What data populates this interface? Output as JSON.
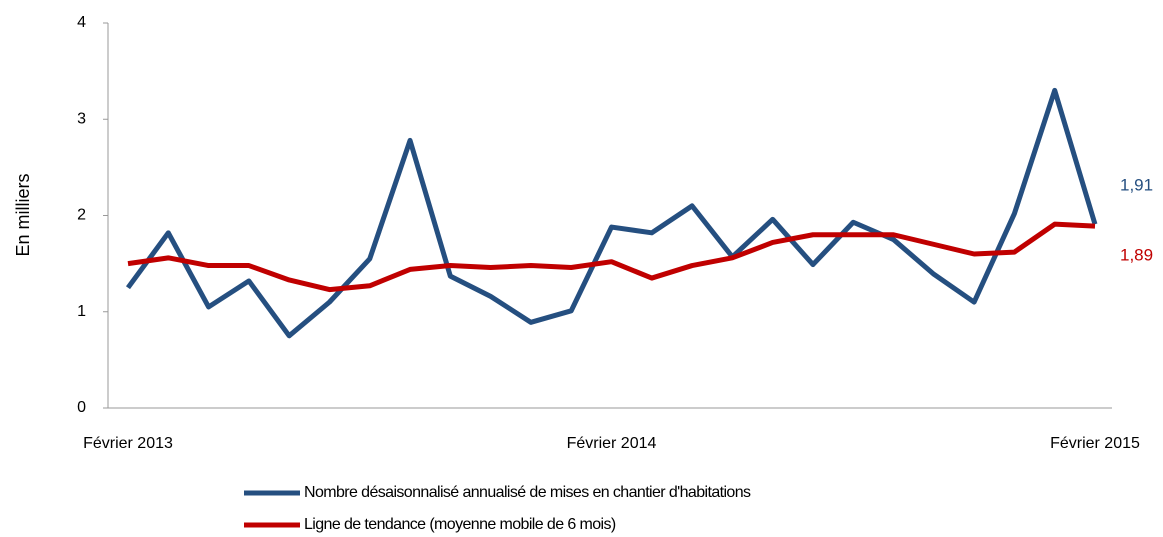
{
  "chart_data": {
    "type": "line",
    "y_label": "En milliers",
    "categories": [
      "Février 2013",
      null,
      null,
      null,
      null,
      null,
      null,
      null,
      null,
      null,
      null,
      null,
      "Février 2014",
      null,
      null,
      null,
      null,
      null,
      null,
      null,
      null,
      null,
      null,
      null,
      "Février 2015"
    ],
    "series": [
      {
        "name": "Nombre désaisonnalisé annualisé de mises en chantier d'habitations",
        "color": "#254f80",
        "values": [
          1.25,
          1.82,
          1.05,
          1.32,
          0.75,
          1.1,
          1.55,
          2.78,
          1.37,
          1.16,
          0.89,
          1.01,
          1.88,
          1.82,
          2.1,
          1.57,
          1.96,
          1.49,
          1.93,
          1.75,
          1.39,
          1.1,
          2.02,
          3.3,
          1.91
        ],
        "value_labels": [
          null,
          null,
          null,
          null,
          null,
          null,
          null,
          null,
          null,
          null,
          null,
          null,
          null,
          null,
          null,
          null,
          null,
          null,
          null,
          null,
          null,
          null,
          null,
          null,
          "1,91"
        ]
      },
      {
        "name": "Ligne de tendance (moyenne mobile de 6 mois)",
        "color": "#c00000",
        "values": [
          1.5,
          1.56,
          1.48,
          1.48,
          1.33,
          1.23,
          1.27,
          1.44,
          1.48,
          1.46,
          1.48,
          1.46,
          1.52,
          1.35,
          1.48,
          1.56,
          1.72,
          1.8,
          1.8,
          1.8,
          1.7,
          1.6,
          1.62,
          1.91,
          1.89
        ],
        "value_labels": [
          null,
          null,
          null,
          null,
          null,
          null,
          null,
          null,
          null,
          null,
          null,
          null,
          null,
          null,
          null,
          null,
          null,
          null,
          null,
          null,
          null,
          null,
          null,
          null,
          "1,89"
        ]
      }
    ],
    "ylim": [
      0,
      4
    ],
    "yticks": [
      0,
      1,
      2,
      3,
      4
    ],
    "grid": false,
    "legend": "bottom"
  }
}
